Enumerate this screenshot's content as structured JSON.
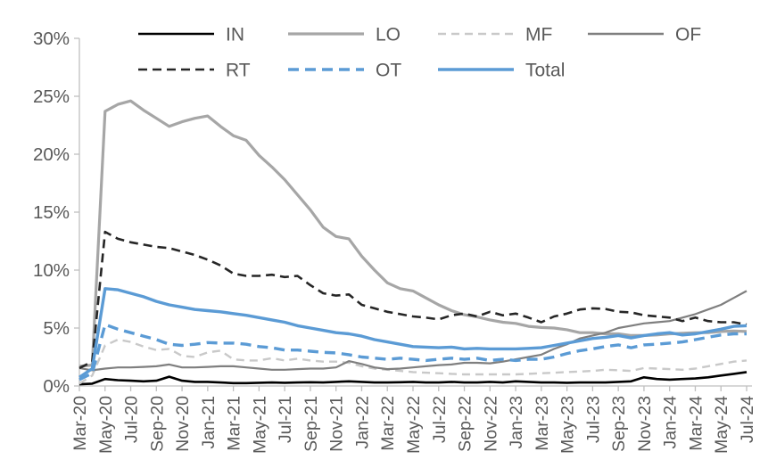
{
  "chart_data": {
    "type": "line",
    "title": "",
    "xlabel": "",
    "ylabel": "",
    "grid": false,
    "background": "#ffffff",
    "axis_color": "#bfbfbf",
    "tick_label_color": "#595959",
    "legend_position": "top",
    "y_axis": {
      "min": 0,
      "max": 30,
      "step": 5,
      "tick_labels": [
        "0%",
        "5%",
        "10%",
        "15%",
        "20%",
        "25%",
        "30%"
      ]
    },
    "x_axis": {
      "label_every": 2,
      "categories": [
        "Mar-20",
        "Apr-20",
        "May-20",
        "Jun-20",
        "Jul-20",
        "Aug-20",
        "Sep-20",
        "Oct-20",
        "Nov-20",
        "Dec-20",
        "Jan-21",
        "Feb-21",
        "Mar-21",
        "Apr-21",
        "May-21",
        "Jun-21",
        "Jul-21",
        "Aug-21",
        "Sep-21",
        "Oct-21",
        "Nov-21",
        "Dec-21",
        "Jan-22",
        "Feb-22",
        "Mar-22",
        "Apr-22",
        "May-22",
        "Jun-22",
        "Jul-22",
        "Aug-22",
        "Sep-22",
        "Oct-22",
        "Nov-22",
        "Dec-22",
        "Jan-23",
        "Feb-23",
        "Mar-23",
        "Apr-23",
        "May-23",
        "Jun-23",
        "Jul-23",
        "Aug-23",
        "Sep-23",
        "Oct-23",
        "Nov-23",
        "Dec-23",
        "Jan-24",
        "Feb-24",
        "Mar-24",
        "Apr-24",
        "May-24",
        "Jun-24",
        "Jul-24"
      ]
    },
    "legend_rows": [
      [
        "IN",
        "LO",
        "MF",
        "OF"
      ],
      [
        "RT",
        "OT",
        "Total"
      ]
    ],
    "series": [
      {
        "name": "IN",
        "color": "#000000",
        "dash": null,
        "width": 2.6,
        "values": [
          0.15,
          0.2,
          0.6,
          0.5,
          0.45,
          0.4,
          0.45,
          0.8,
          0.45,
          0.35,
          0.35,
          0.3,
          0.25,
          0.25,
          0.28,
          0.3,
          0.28,
          0.3,
          0.32,
          0.3,
          0.35,
          0.4,
          0.35,
          0.3,
          0.3,
          0.32,
          0.35,
          0.3,
          0.3,
          0.35,
          0.3,
          0.3,
          0.35,
          0.3,
          0.4,
          0.35,
          0.3,
          0.3,
          0.28,
          0.3,
          0.3,
          0.3,
          0.35,
          0.4,
          0.75,
          0.6,
          0.55,
          0.6,
          0.65,
          0.75,
          0.9,
          1.05,
          1.2
        ]
      },
      {
        "name": "LO",
        "color": "#a6a6a6",
        "dash": null,
        "width": 3.2,
        "values": [
          1.7,
          1.8,
          23.7,
          24.3,
          24.6,
          23.8,
          23.1,
          22.4,
          22.8,
          23.1,
          23.3,
          22.4,
          21.6,
          21.2,
          19.9,
          18.9,
          17.8,
          16.5,
          15.2,
          13.7,
          12.9,
          12.7,
          11.2,
          10.0,
          8.9,
          8.4,
          8.2,
          7.6,
          7.0,
          6.5,
          6.15,
          5.95,
          5.7,
          5.5,
          5.4,
          5.15,
          5.05,
          5.0,
          4.85,
          4.6,
          4.6,
          4.5,
          4.5,
          4.35,
          4.35,
          4.4,
          4.5,
          4.55,
          4.6,
          4.6,
          4.7,
          4.75,
          4.7
        ]
      },
      {
        "name": "MF",
        "color": "#c9c9c9",
        "dash": "9 6",
        "width": 2.4,
        "values": [
          0.2,
          0.9,
          3.5,
          4.0,
          3.8,
          3.4,
          3.1,
          3.2,
          2.6,
          2.5,
          2.9,
          3.05,
          2.3,
          2.2,
          2.2,
          2.4,
          2.2,
          2.35,
          2.2,
          2.1,
          2.1,
          2.0,
          1.7,
          1.5,
          1.4,
          1.3,
          1.2,
          1.15,
          1.1,
          1.05,
          1.0,
          1.0,
          1.0,
          1.0,
          1.0,
          1.05,
          1.1,
          1.15,
          1.2,
          1.25,
          1.3,
          1.4,
          1.35,
          1.3,
          1.55,
          1.5,
          1.45,
          1.4,
          1.5,
          1.7,
          1.9,
          2.1,
          2.2
        ]
      },
      {
        "name": "OF",
        "color": "#7f7f7f",
        "dash": null,
        "width": 2.2,
        "values": [
          1.55,
          1.35,
          1.5,
          1.6,
          1.6,
          1.65,
          1.7,
          1.85,
          1.6,
          1.6,
          1.65,
          1.7,
          1.7,
          1.6,
          1.5,
          1.4,
          1.4,
          1.45,
          1.5,
          1.5,
          1.6,
          2.15,
          1.9,
          1.6,
          1.45,
          1.5,
          1.6,
          1.7,
          1.8,
          1.85,
          2.0,
          2.0,
          1.95,
          2.1,
          2.3,
          2.5,
          2.7,
          3.2,
          3.6,
          4.1,
          4.35,
          4.6,
          5.0,
          5.2,
          5.4,
          5.5,
          5.6,
          5.9,
          6.2,
          6.6,
          7.0,
          7.6,
          8.2
        ]
      },
      {
        "name": "RT",
        "color": "#262626",
        "dash": "10 6",
        "width": 2.6,
        "values": [
          1.55,
          2.1,
          13.3,
          12.7,
          12.4,
          12.2,
          12.0,
          11.9,
          11.6,
          11.3,
          10.9,
          10.4,
          9.7,
          9.5,
          9.5,
          9.6,
          9.4,
          9.5,
          8.7,
          8.0,
          7.8,
          7.9,
          7.0,
          6.7,
          6.4,
          6.2,
          6.0,
          5.9,
          5.75,
          6.1,
          6.25,
          6.0,
          6.4,
          6.1,
          6.25,
          5.9,
          5.5,
          6.0,
          6.25,
          6.6,
          6.7,
          6.65,
          6.4,
          6.35,
          6.1,
          6.0,
          5.9,
          5.6,
          5.9,
          5.6,
          5.5,
          5.5,
          5.3
        ]
      },
      {
        "name": "OT",
        "color": "#5b9bd5",
        "dash": "12 7",
        "width": 3.4,
        "values": [
          0.55,
          1.1,
          5.3,
          4.9,
          4.6,
          4.3,
          4.0,
          3.6,
          3.5,
          3.6,
          3.75,
          3.7,
          3.7,
          3.6,
          3.4,
          3.3,
          3.1,
          3.1,
          3.0,
          2.9,
          2.85,
          2.7,
          2.5,
          2.4,
          2.3,
          2.4,
          2.3,
          2.2,
          2.3,
          2.4,
          2.3,
          2.4,
          2.2,
          2.3,
          2.2,
          2.3,
          2.3,
          2.5,
          2.8,
          3.05,
          3.2,
          3.4,
          3.55,
          3.3,
          3.55,
          3.6,
          3.7,
          3.8,
          4.0,
          4.2,
          4.4,
          4.5,
          4.5
        ]
      },
      {
        "name": "Total",
        "color": "#5b9bd5",
        "dash": null,
        "width": 3.4,
        "values": [
          0.75,
          1.5,
          8.4,
          8.3,
          8.0,
          7.7,
          7.3,
          7.0,
          6.8,
          6.6,
          6.5,
          6.4,
          6.25,
          6.1,
          5.9,
          5.7,
          5.5,
          5.2,
          5.0,
          4.8,
          4.6,
          4.5,
          4.3,
          4.0,
          3.8,
          3.6,
          3.4,
          3.35,
          3.3,
          3.35,
          3.2,
          3.25,
          3.2,
          3.2,
          3.2,
          3.25,
          3.3,
          3.5,
          3.7,
          3.9,
          4.1,
          4.2,
          4.35,
          4.15,
          4.35,
          4.5,
          4.6,
          4.4,
          4.5,
          4.7,
          4.9,
          5.15,
          5.2
        ]
      }
    ]
  }
}
